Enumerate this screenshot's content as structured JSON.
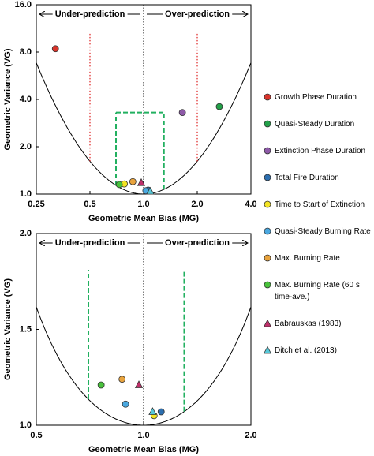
{
  "chart_data": [
    {
      "type": "scatter",
      "x_label": "Geometric Mean Bias (MG)",
      "y_label": "Geometric Variance (VG)",
      "xlog": true,
      "ylog": true,
      "xlim": [
        0.25,
        4.0
      ],
      "xticks": [
        0.25,
        0.5,
        {
          "value": 1.0,
          "label": "1.0"
        },
        {
          "value": 2.0,
          "label": "2.0"
        },
        {
          "value": 4.0,
          "label": "4.0"
        }
      ],
      "ylim": [
        1.0,
        16.0
      ],
      "yticks": [
        {
          "value": 1.0,
          "label": "1.0"
        },
        {
          "value": 2.0,
          "label": "2.0"
        },
        {
          "value": 4.0,
          "label": "4.0"
        },
        {
          "value": 8.0,
          "label": "8.0"
        },
        {
          "value": 16.0,
          "label": "16.0"
        }
      ],
      "annotations": [
        "Under-prediction",
        "Over-prediction"
      ],
      "factor2_lines": [
        0.5,
        2.0
      ],
      "box": {
        "x": [
          0.7,
          1.3
        ],
        "y": 3.3
      },
      "series": [
        {
          "name": "Growth Phase Duration",
          "color": "#d9342b",
          "marker": "circle",
          "x": [
            0.32
          ],
          "y": [
            8.4
          ]
        },
        {
          "name": "Quasi-Steady Duration",
          "color": "#23a049",
          "marker": "circle",
          "x": [
            2.66
          ],
          "y": [
            3.6
          ]
        },
        {
          "name": "Extinction Phase Duration",
          "color": "#8e5aa8",
          "marker": "circle",
          "x": [
            1.65
          ],
          "y": [
            3.3
          ]
        },
        {
          "name": "Total Fire Duration",
          "color": "#2c6fb0",
          "marker": "circle",
          "x": [
            1.06
          ],
          "y": [
            1.06
          ]
        },
        {
          "name": "Time to Start of Extinction",
          "color": "#f3e424",
          "marker": "circle",
          "x": [
            0.78
          ],
          "y": [
            1.16
          ]
        },
        {
          "name": "Quasi-Steady Burning Rate",
          "color": "#4aa8e0",
          "marker": "circle",
          "x": [
            1.03
          ],
          "y": [
            1.05
          ]
        },
        {
          "name": "Max. Burning Rate",
          "color": "#e8a33d",
          "marker": "circle",
          "x": [
            0.87
          ],
          "y": [
            1.2
          ]
        },
        {
          "name": "Max. Burning Rate (60 s time-ave.)",
          "color": "#49c23c",
          "marker": "circle",
          "x": [
            0.73
          ],
          "y": [
            1.15
          ]
        },
        {
          "name": "Babrauskas (1983)",
          "color": "#c0306a",
          "marker": "triangle",
          "x": [
            0.97
          ],
          "y": [
            1.18
          ]
        },
        {
          "name": "Ditch et al. (2013)",
          "color": "#56c8d8",
          "marker": "triangle",
          "x": [
            1.09
          ],
          "y": [
            1.04
          ]
        }
      ]
    },
    {
      "type": "scatter",
      "x_label": "Geometric Mean Bias (MG)",
      "y_label": "Geometric Variance (VG)",
      "xlog": true,
      "ylog": false,
      "xlim": [
        0.5,
        2.0
      ],
      "xticks": [
        0.5,
        {
          "value": 1.0,
          "label": "1.0"
        },
        {
          "value": 2.0,
          "label": "2.0"
        }
      ],
      "ylim": [
        1.0,
        2.0
      ],
      "yticks": [
        {
          "value": 1.0,
          "label": "1.0"
        },
        1.5,
        {
          "value": 2.0,
          "label": "2.0"
        }
      ],
      "annotations": [
        "Under-prediction",
        "Over-prediction"
      ],
      "box": {
        "x": [
          0.7,
          1.3
        ]
      },
      "series": [
        {
          "x": [],
          "y": []
        },
        {
          "x": [],
          "y": []
        },
        {
          "x": [],
          "y": []
        },
        {
          "x": [
            1.12
          ],
          "y": [
            1.07
          ]
        },
        {
          "x": [
            1.07
          ],
          "y": [
            1.05
          ]
        },
        {
          "x": [
            0.89
          ],
          "y": [
            1.11
          ]
        },
        {
          "x": [
            0.87
          ],
          "y": [
            1.24
          ]
        },
        {
          "x": [
            0.76
          ],
          "y": [
            1.21
          ]
        },
        {
          "x": [
            0.97
          ],
          "y": [
            1.21
          ]
        },
        {
          "x": [
            1.06
          ],
          "y": [
            1.07
          ]
        }
      ]
    }
  ]
}
